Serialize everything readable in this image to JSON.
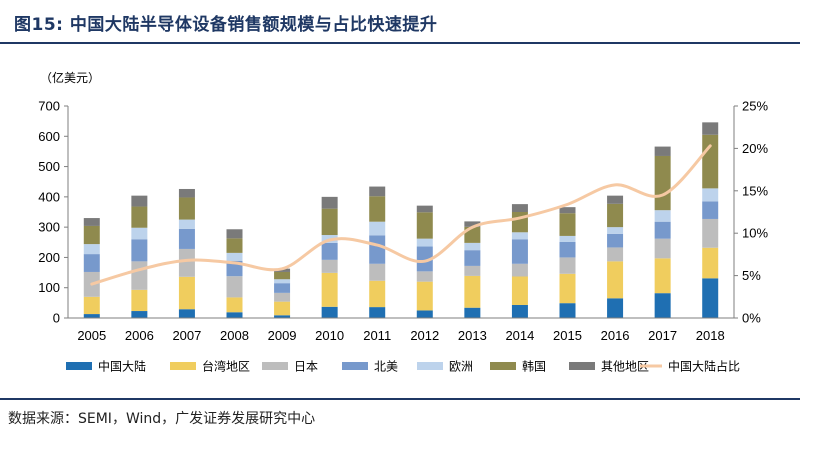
{
  "header": {
    "title": "图15:  中国大陆半导体设备销售额规模与占比快速提升"
  },
  "source": "数据来源：SEMI，Wind，广发证券发展研究中心",
  "chart_data": {
    "type": "bar",
    "stacked": true,
    "unit_label": "（亿美元）",
    "categories": [
      "2005",
      "2006",
      "2007",
      "2008",
      "2009",
      "2010",
      "2011",
      "2012",
      "2013",
      "2014",
      "2015",
      "2016",
      "2017",
      "2018"
    ],
    "ylim": [
      0,
      700
    ],
    "yticks": [
      "0",
      "100",
      "200",
      "300",
      "400",
      "500",
      "600",
      "700"
    ],
    "y2lim": [
      0,
      25
    ],
    "y2ticks": [
      "0%",
      "5%",
      "10%",
      "15%",
      "20%",
      "25%"
    ],
    "series": [
      {
        "name": "中国大陆",
        "color": "#1f6fb2",
        "values": [
          13,
          23,
          29,
          19,
          9,
          37,
          36,
          25,
          34,
          43,
          49,
          65,
          82,
          131
        ]
      },
      {
        "name": "台湾地区",
        "color": "#f0cd5e",
        "values": [
          57,
          70,
          107,
          49,
          45,
          112,
          87,
          95,
          105,
          94,
          97,
          122,
          115,
          101
        ]
      },
      {
        "name": "日本",
        "color": "#bdbdbd",
        "values": [
          82,
          94,
          92,
          70,
          29,
          43,
          56,
          34,
          33,
          42,
          54,
          46,
          65,
          95
        ]
      },
      {
        "name": "北美",
        "color": "#7799cc",
        "values": [
          59,
          73,
          66,
          51,
          32,
          56,
          94,
          82,
          52,
          81,
          51,
          45,
          56,
          58
        ]
      },
      {
        "name": "欧洲",
        "color": "#bdd3ec",
        "values": [
          33,
          38,
          31,
          26,
          13,
          26,
          45,
          26,
          24,
          23,
          20,
          22,
          38,
          43
        ]
      },
      {
        "name": "韩国",
        "color": "#8f8a4e",
        "values": [
          60,
          70,
          73,
          48,
          24,
          87,
          84,
          87,
          53,
          67,
          75,
          77,
          179,
          177
        ]
      },
      {
        "name": "其他地区",
        "color": "#7a7a7a",
        "values": [
          26,
          36,
          28,
          30,
          11,
          39,
          32,
          22,
          18,
          26,
          20,
          27,
          31,
          41
        ]
      }
    ],
    "line": {
      "name": "中国大陆占比",
      "color": "#f6c9a3",
      "axis": "right",
      "values": [
        4.0,
        5.7,
        6.8,
        6.5,
        5.8,
        9.2,
        8.6,
        6.7,
        10.7,
        11.8,
        13.4,
        15.7,
        14.5,
        20.3
      ]
    }
  }
}
